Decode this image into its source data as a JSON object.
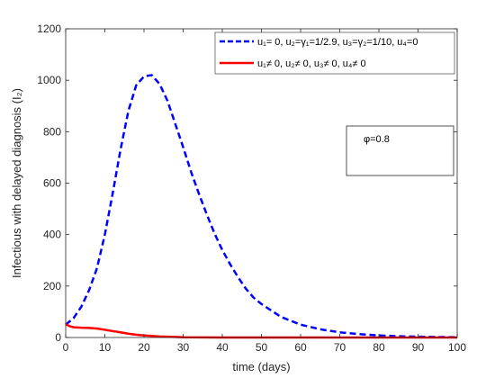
{
  "chart_data": {
    "type": "line",
    "xlabel": "time (days)",
    "ylabel": "Infectious with delayed diagnosis (I₂)",
    "xlim": [
      0,
      100
    ],
    "ylim": [
      0,
      1200
    ],
    "xticks": [
      "0",
      "10",
      "20",
      "30",
      "40",
      "50",
      "60",
      "70",
      "80",
      "90",
      "100"
    ],
    "yticks": [
      "0",
      "200",
      "400",
      "600",
      "800",
      "1000",
      "1200"
    ],
    "legend_position": "top-right",
    "grid": false,
    "annotation": "φ=0.8",
    "series": [
      {
        "name": "u₁= 0, u₂=γ₁=1/2.9, u₃=γ₂=1/10, u₄=0",
        "color": "#0000ff",
        "style": "dashed",
        "x": [
          0,
          2,
          4,
          6,
          8,
          10,
          12,
          14,
          16,
          18,
          20,
          22,
          24,
          26,
          28,
          30,
          32,
          34,
          36,
          38,
          40,
          42,
          44,
          46,
          48,
          50,
          55,
          60,
          65,
          70,
          75,
          80,
          85,
          90,
          95,
          100
        ],
        "y": [
          50,
          75,
          120,
          185,
          270,
          400,
          560,
          730,
          880,
          980,
          1015,
          1020,
          985,
          920,
          830,
          740,
          645,
          560,
          480,
          405,
          340,
          285,
          235,
          190,
          155,
          130,
          80,
          50,
          32,
          20,
          13,
          8,
          5,
          3,
          2,
          1
        ]
      },
      {
        "name": "u₁≠ 0, u₂≠ 0, u₃≠ 0, u₄≠ 0",
        "color": "#ff0000",
        "style": "solid",
        "x": [
          0,
          1,
          2,
          4,
          6,
          8,
          10,
          12,
          14,
          16,
          18,
          20,
          22,
          24,
          26,
          28,
          30,
          35,
          40,
          50,
          60,
          70,
          80,
          90,
          100
        ],
        "y": [
          52,
          44,
          40,
          38,
          37,
          35,
          30,
          25,
          20,
          15,
          11,
          8,
          6,
          4,
          3,
          2,
          1,
          0.5,
          0,
          0,
          0,
          0,
          0,
          0,
          0
        ]
      }
    ]
  }
}
